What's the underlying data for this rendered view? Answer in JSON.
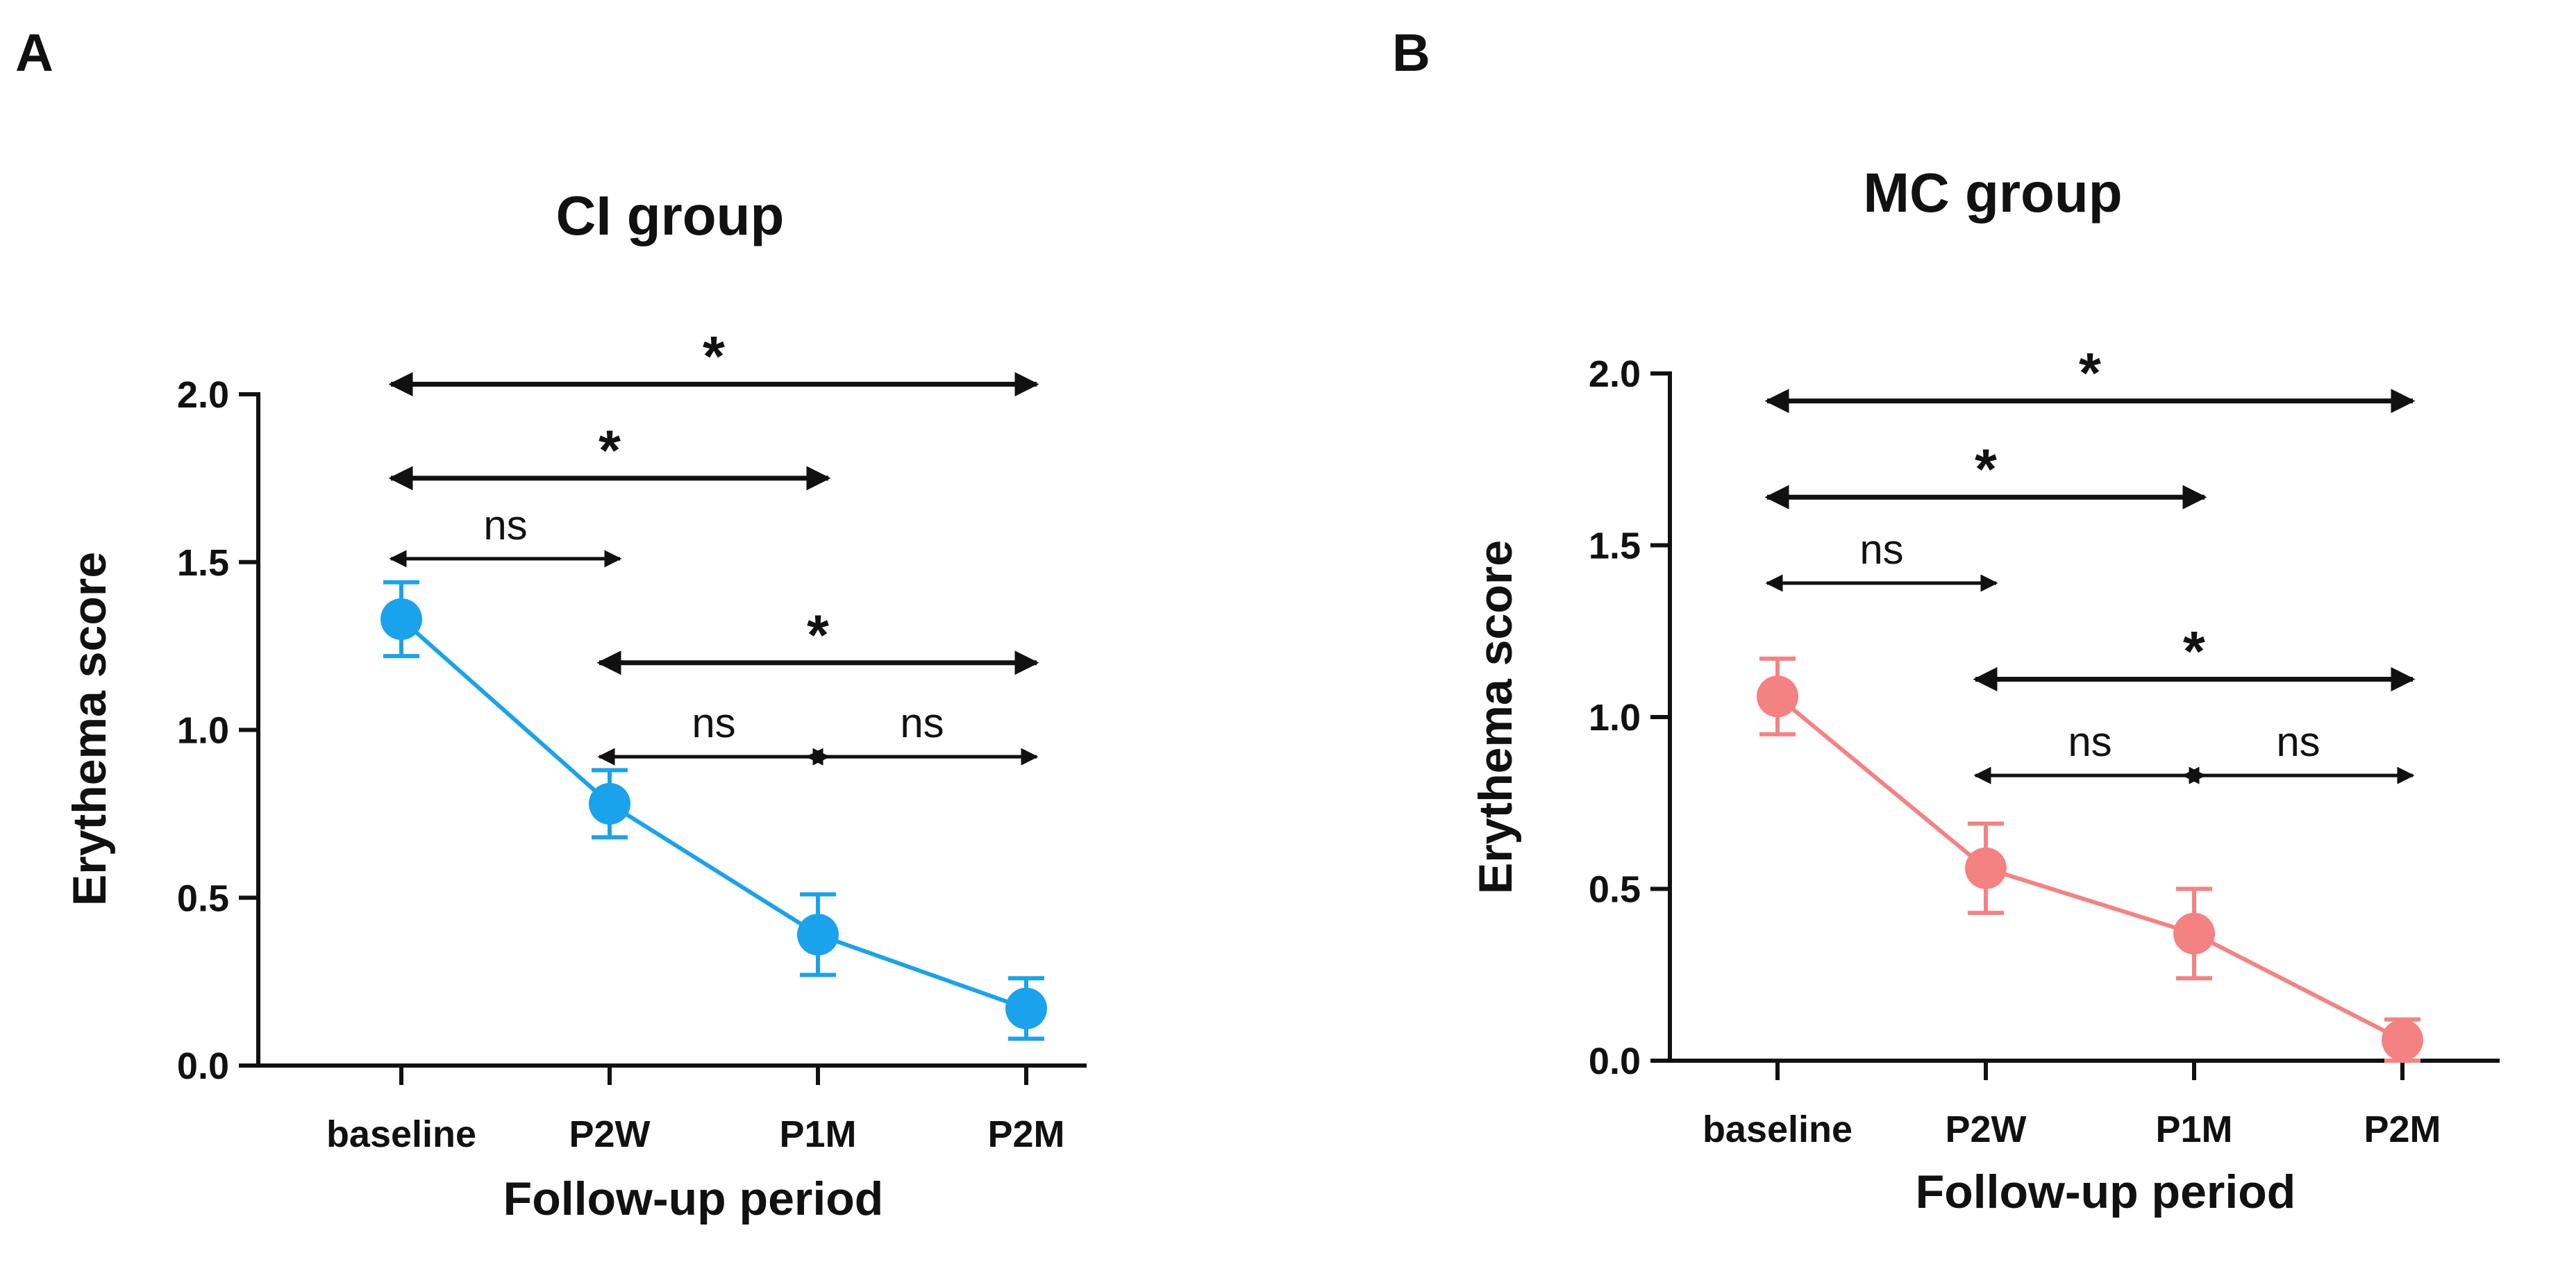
{
  "colors": {
    "cl_series": "#1aa3ec",
    "mc_series": "#f58282",
    "ink": "#111111"
  },
  "chart_data": [
    {
      "panel": "A",
      "type": "line",
      "title": "CI group",
      "xlabel": "Follow-up period",
      "ylabel": "Erythema score",
      "categories": [
        "baseline",
        "P2W",
        "P1M",
        "P2M"
      ],
      "ylim": [
        0,
        2.0
      ],
      "yticks": [
        "0.0",
        "0.5",
        "1.0",
        "1.5",
        "2.0"
      ],
      "series": [
        {
          "name": "CI group",
          "color": "#1aa3ec",
          "values": [
            1.33,
            0.78,
            0.39,
            0.17
          ],
          "error": [
            0.11,
            0.1,
            0.12,
            0.09
          ]
        }
      ],
      "comparisons": [
        {
          "from": "baseline",
          "to": "P2M",
          "label": "*",
          "y": 2.03
        },
        {
          "from": "baseline",
          "to": "P1M",
          "label": "*",
          "y": 1.75
        },
        {
          "from": "baseline",
          "to": "P2W",
          "label": "ns",
          "y": 1.51
        },
        {
          "from": "P2W",
          "to": "P2M",
          "label": "*",
          "y": 1.2
        },
        {
          "from": "P2W",
          "to": "P1M",
          "label": "ns",
          "y": 0.92
        },
        {
          "from": "P1M",
          "to": "P2M",
          "label": "ns",
          "y": 0.92
        }
      ]
    },
    {
      "panel": "B",
      "type": "line",
      "title": "MC group",
      "xlabel": "Follow-up period",
      "ylabel": "Erythema score",
      "categories": [
        "baseline",
        "P2W",
        "P1M",
        "P2M"
      ],
      "ylim": [
        0,
        2.0
      ],
      "yticks": [
        "0.0",
        "0.5",
        "1.0",
        "1.5",
        "2.0"
      ],
      "series": [
        {
          "name": "MC group",
          "color": "#f58282",
          "values": [
            1.06,
            0.56,
            0.37,
            0.06
          ],
          "error": [
            0.11,
            0.13,
            0.13,
            0.06
          ]
        }
      ],
      "comparisons": [
        {
          "from": "baseline",
          "to": "P2M",
          "label": "*",
          "y": 1.92
        },
        {
          "from": "baseline",
          "to": "P1M",
          "label": "*",
          "y": 1.64
        },
        {
          "from": "baseline",
          "to": "P2W",
          "label": "ns",
          "y": 1.39
        },
        {
          "from": "P2W",
          "to": "P2M",
          "label": "*",
          "y": 1.11
        },
        {
          "from": "P2W",
          "to": "P1M",
          "label": "ns",
          "y": 0.83
        },
        {
          "from": "P1M",
          "to": "P2M",
          "label": "ns",
          "y": 0.83
        }
      ]
    }
  ]
}
